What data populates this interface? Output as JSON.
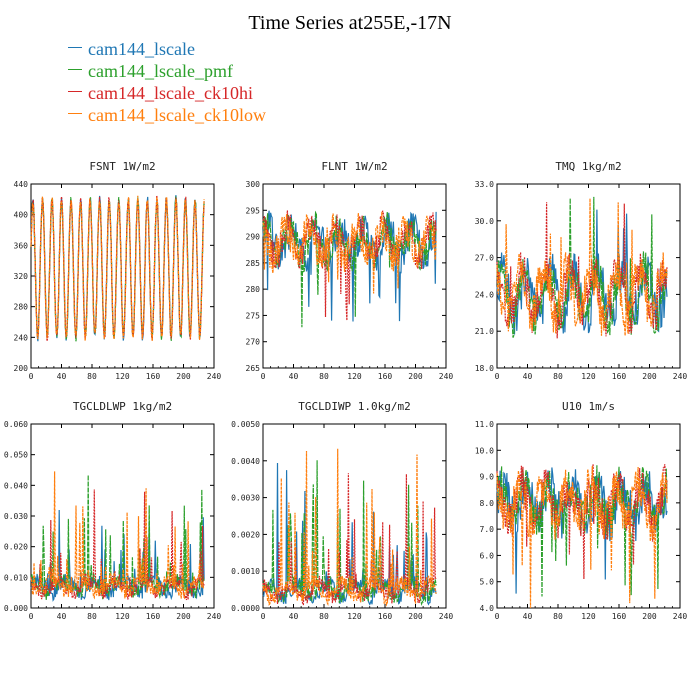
{
  "title": "Time Series at255E,-17N",
  "series": [
    {
      "name": "cam144_lscale",
      "color": "#1f77b4"
    },
    {
      "name": "cam144_lscale_pmf",
      "color": "#2ca02c"
    },
    {
      "name": "cam144_lscale_ck10hi",
      "color": "#d62728"
    },
    {
      "name": "cam144_lscale_ck10low",
      "color": "#ff7f0e"
    }
  ],
  "chart_data": [
    {
      "type": "line",
      "title": "FSNT  1W/m2",
      "x_range": [
        0,
        240
      ],
      "ylim": [
        200,
        440
      ],
      "x_ticks": [
        "0",
        "40",
        "80",
        "120",
        "160",
        "200",
        "240"
      ],
      "y_ticks": [
        "200",
        "240",
        "280",
        "320",
        "360",
        "400",
        "440"
      ],
      "profile": "diurnal",
      "mean": 330,
      "amp": 90,
      "noise": 6,
      "period": 12.5,
      "n": 228
    },
    {
      "type": "line",
      "title": "FLNT  1W/m2",
      "x_range": [
        0,
        240
      ],
      "ylim": [
        265,
        300
      ],
      "x_ticks": [
        "0",
        "40",
        "80",
        "120",
        "160",
        "200",
        "240"
      ],
      "y_ticks": [
        "265",
        "270",
        "275",
        "280",
        "285",
        "290",
        "295",
        "300"
      ],
      "profile": "noisy",
      "mean": 289,
      "amp": 3,
      "noise": 3,
      "spike": -14,
      "n": 228
    },
    {
      "type": "line",
      "title": "TMQ  1kg/m2",
      "x_range": [
        0,
        240
      ],
      "ylim": [
        18,
        33
      ],
      "x_ticks": [
        "0",
        "40",
        "80",
        "120",
        "160",
        "200",
        "240"
      ],
      "y_ticks": [
        "18.0",
        "21.0",
        "24.0",
        "27.0",
        "30.0",
        "33.0"
      ],
      "profile": "noisy",
      "mean": 24,
      "amp": 2,
      "noise": 1.6,
      "spike": 7,
      "n": 224
    },
    {
      "type": "line",
      "title": "TGCLDLWP  1kg/m2",
      "x_range": [
        0,
        240
      ],
      "ylim": [
        0,
        0.06
      ],
      "x_ticks": [
        "0",
        "40",
        "80",
        "120",
        "160",
        "200",
        "240"
      ],
      "y_ticks": [
        "0.000",
        "0.010",
        "0.020",
        "0.030",
        "0.040",
        "0.050",
        "0.060"
      ],
      "profile": "spiky",
      "mean": 0.006,
      "amp": 0.002,
      "noise": 0.005,
      "spike": 0.045,
      "n": 228
    },
    {
      "type": "line",
      "title": "TGCLDIWP  1.0kg/m2",
      "x_range": [
        0,
        240
      ],
      "ylim": [
        0,
        0.005
      ],
      "x_ticks": [
        "0",
        "40",
        "80",
        "120",
        "160",
        "200",
        "240"
      ],
      "y_ticks": [
        "0.0000",
        "0.0010",
        "0.0020",
        "0.0030",
        "0.0040",
        "0.0050"
      ],
      "profile": "spiky",
      "mean": 0.0004,
      "amp": 0.0002,
      "noise": 0.0004,
      "spike": 0.0042,
      "n": 228
    },
    {
      "type": "line",
      "title": "U10  1m/s",
      "x_range": [
        0,
        240
      ],
      "ylim": [
        4,
        11
      ],
      "x_ticks": [
        "0",
        "40",
        "80",
        "120",
        "160",
        "200",
        "240"
      ],
      "y_ticks": [
        "4.0",
        "5.0",
        "6.0",
        "7.0",
        "8.0",
        "9.0",
        "10.0",
        "11.0"
      ],
      "profile": "noisy",
      "mean": 8.0,
      "amp": 0.7,
      "noise": 0.8,
      "spike": -3.5,
      "n": 224
    }
  ]
}
